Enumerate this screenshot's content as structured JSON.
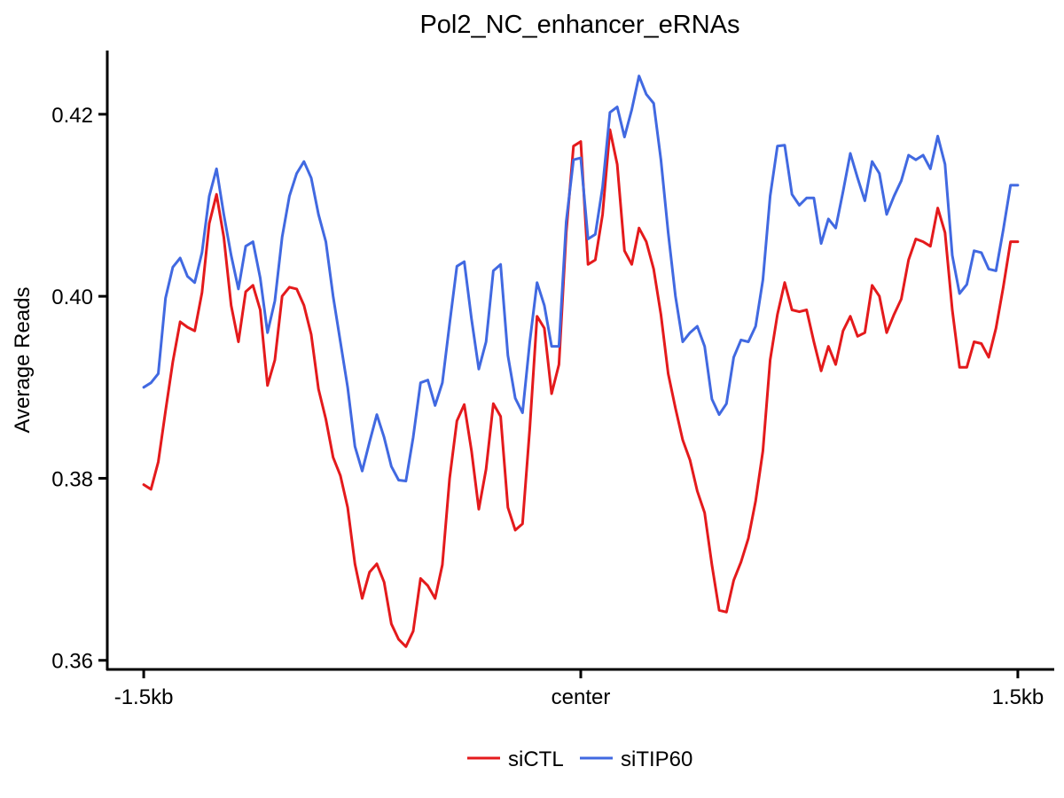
{
  "chart_data": {
    "type": "line",
    "title": "Pol2_NC_enhancer_eRNAs",
    "xlabel": "",
    "ylabel": "Average Reads",
    "x_tick_labels": [
      "-1.5kb",
      "center",
      "1.5kb"
    ],
    "x_tick_positions": [
      0,
      60,
      120
    ],
    "xlim": [
      -5,
      125
    ],
    "ylim": [
      0.359,
      0.427
    ],
    "y_ticks": [
      0.36,
      0.38,
      0.4,
      0.42
    ],
    "y_tick_labels": [
      "0.36",
      "0.38",
      "0.40",
      "0.42"
    ],
    "grid": false,
    "legend_position": "bottom",
    "series": [
      {
        "name": "siCTL",
        "color": "#e41a1c",
        "x": [
          0,
          1,
          2,
          3,
          4,
          5,
          6,
          7,
          8,
          9,
          10,
          11,
          12,
          13,
          14,
          15,
          16,
          17,
          18,
          19,
          20,
          21,
          22,
          23,
          24,
          25,
          26,
          27,
          28,
          29,
          30,
          31,
          32,
          33,
          34,
          35,
          36,
          37,
          38,
          39,
          40,
          41,
          42,
          43,
          44,
          45,
          46,
          47,
          48,
          49,
          50,
          51,
          52,
          53,
          54,
          55,
          56,
          57,
          58,
          59,
          60,
          61,
          62,
          63,
          64,
          65,
          66,
          67,
          68,
          69,
          70,
          71,
          72,
          73,
          74,
          75,
          76,
          77,
          78,
          79,
          80,
          81,
          82,
          83,
          84,
          85,
          86,
          87,
          88,
          89,
          90,
          91,
          92,
          93,
          94,
          95,
          96,
          97,
          98,
          99,
          100,
          101,
          102,
          103,
          104,
          105,
          106,
          107,
          108,
          109,
          110,
          111,
          112,
          113,
          114,
          115,
          116,
          117,
          118,
          119,
          120
        ],
        "values": [
          0.3793,
          0.3788,
          0.3818,
          0.3874,
          0.3928,
          0.3972,
          0.3966,
          0.3962,
          0.4004,
          0.408,
          0.4112,
          0.4065,
          0.399,
          0.395,
          0.4005,
          0.4012,
          0.3985,
          0.3902,
          0.393,
          0.4,
          0.401,
          0.4008,
          0.399,
          0.3958,
          0.3898,
          0.3865,
          0.3823,
          0.3803,
          0.3768,
          0.3706,
          0.3668,
          0.3697,
          0.3706,
          0.3686,
          0.364,
          0.3623,
          0.3615,
          0.3632,
          0.369,
          0.3682,
          0.3668,
          0.3705,
          0.38,
          0.3863,
          0.3881,
          0.383,
          0.3766,
          0.381,
          0.3882,
          0.3868,
          0.3768,
          0.3743,
          0.375,
          0.3855,
          0.3978,
          0.3965,
          0.3893,
          0.3925,
          0.407,
          0.4165,
          0.417,
          0.4035,
          0.404,
          0.409,
          0.4183,
          0.4145,
          0.405,
          0.4035,
          0.4075,
          0.406,
          0.403,
          0.398,
          0.3915,
          0.3877,
          0.3842,
          0.382,
          0.3786,
          0.3762,
          0.3705,
          0.3655,
          0.3653,
          0.3688,
          0.3708,
          0.3734,
          0.3775,
          0.383,
          0.393,
          0.398,
          0.4015,
          0.3985,
          0.3983,
          0.3985,
          0.395,
          0.3918,
          0.3945,
          0.3925,
          0.3962,
          0.3978,
          0.3956,
          0.396,
          0.4012,
          0.4,
          0.396,
          0.398,
          0.3997,
          0.404,
          0.4063,
          0.406,
          0.4055,
          0.4097,
          0.407,
          0.3985,
          0.3922,
          0.3922,
          0.395,
          0.3948,
          0.3933,
          0.3965,
          0.401,
          0.406,
          0.406
        ]
      },
      {
        "name": "siTIP60",
        "color": "#4169e1",
        "x": [
          0,
          1,
          2,
          3,
          4,
          5,
          6,
          7,
          8,
          9,
          10,
          11,
          12,
          13,
          14,
          15,
          16,
          17,
          18,
          19,
          20,
          21,
          22,
          23,
          24,
          25,
          26,
          27,
          28,
          29,
          30,
          31,
          32,
          33,
          34,
          35,
          36,
          37,
          38,
          39,
          40,
          41,
          42,
          43,
          44,
          45,
          46,
          47,
          48,
          49,
          50,
          51,
          52,
          53,
          54,
          55,
          56,
          57,
          58,
          59,
          60,
          61,
          62,
          63,
          64,
          65,
          66,
          67,
          68,
          69,
          70,
          71,
          72,
          73,
          74,
          75,
          76,
          77,
          78,
          79,
          80,
          81,
          82,
          83,
          84,
          85,
          86,
          87,
          88,
          89,
          90,
          91,
          92,
          93,
          94,
          95,
          96,
          97,
          98,
          99,
          100,
          101,
          102,
          103,
          104,
          105,
          106,
          107,
          108,
          109,
          110,
          111,
          112,
          113,
          114,
          115,
          116,
          117,
          118,
          119,
          120
        ],
        "values": [
          0.39,
          0.3905,
          0.3915,
          0.3998,
          0.4032,
          0.4042,
          0.4022,
          0.4015,
          0.4048,
          0.411,
          0.414,
          0.409,
          0.4045,
          0.4008,
          0.4055,
          0.406,
          0.402,
          0.396,
          0.3995,
          0.4065,
          0.411,
          0.4135,
          0.4148,
          0.413,
          0.409,
          0.406,
          0.4,
          0.395,
          0.39,
          0.3835,
          0.3808,
          0.384,
          0.387,
          0.3845,
          0.3813,
          0.3798,
          0.3797,
          0.3845,
          0.3905,
          0.3908,
          0.388,
          0.3905,
          0.397,
          0.4033,
          0.4038,
          0.3975,
          0.392,
          0.395,
          0.4028,
          0.4035,
          0.3935,
          0.3888,
          0.3872,
          0.395,
          0.4015,
          0.399,
          0.3945,
          0.3945,
          0.4082,
          0.415,
          0.4152,
          0.4063,
          0.4068,
          0.412,
          0.4202,
          0.4208,
          0.4175,
          0.4205,
          0.4242,
          0.4222,
          0.4212,
          0.415,
          0.407,
          0.4,
          0.395,
          0.396,
          0.3967,
          0.3945,
          0.3887,
          0.387,
          0.3882,
          0.3933,
          0.3952,
          0.395,
          0.3967,
          0.4018,
          0.411,
          0.4165,
          0.4166,
          0.4112,
          0.41,
          0.4108,
          0.4108,
          0.4058,
          0.4085,
          0.4075,
          0.4115,
          0.4157,
          0.413,
          0.4105,
          0.4148,
          0.4135,
          0.409,
          0.411,
          0.4127,
          0.4155,
          0.415,
          0.4155,
          0.414,
          0.4176,
          0.4145,
          0.4045,
          0.4003,
          0.4013,
          0.405,
          0.4048,
          0.403,
          0.4028,
          0.4073,
          0.4122,
          0.4122
        ]
      }
    ]
  }
}
